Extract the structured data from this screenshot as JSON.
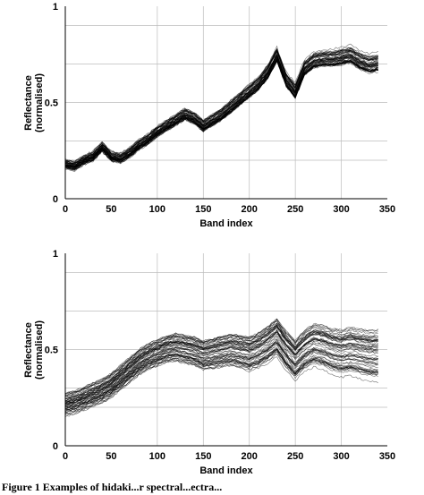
{
  "chart_data": [
    {
      "type": "line",
      "title": "",
      "xlabel": "Band index",
      "ylabel": "Reflectance",
      "ylabel_sub": "(normalised)",
      "xlim": [
        0,
        350
      ],
      "ylim": [
        0,
        1
      ],
      "xticks": [
        0,
        50,
        100,
        150,
        200,
        250,
        300,
        350
      ],
      "yticks": [
        0,
        0.5,
        1
      ],
      "grid": true,
      "series_count": 60,
      "series_count_note_removed": true,
      "mean_x": [
        0,
        10,
        20,
        30,
        40,
        50,
        60,
        70,
        80,
        90,
        100,
        110,
        120,
        130,
        140,
        150,
        160,
        170,
        180,
        190,
        200,
        210,
        220,
        230,
        240,
        250,
        260,
        270,
        280,
        290,
        300,
        310,
        320,
        330,
        340
      ],
      "mean_y": [
        0.18,
        0.17,
        0.2,
        0.22,
        0.27,
        0.22,
        0.21,
        0.24,
        0.28,
        0.31,
        0.35,
        0.38,
        0.41,
        0.44,
        0.42,
        0.38,
        0.41,
        0.44,
        0.48,
        0.52,
        0.56,
        0.6,
        0.66,
        0.75,
        0.62,
        0.56,
        0.68,
        0.72,
        0.73,
        0.73,
        0.74,
        0.75,
        0.72,
        0.7,
        0.71
      ],
      "spread": 0.04
    },
    {
      "type": "line",
      "title": "",
      "xlabel": "Band index",
      "ylabel": "Reflectance",
      "ylabel_sub": "(normalised)",
      "xlim": [
        0,
        350
      ],
      "ylim": [
        0,
        1
      ],
      "xticks": [
        0,
        50,
        100,
        150,
        200,
        250,
        300,
        350
      ],
      "yticks": [
        0,
        0.5,
        1
      ],
      "grid": true,
      "series_count": 60,
      "mean_x": [
        0,
        10,
        20,
        30,
        40,
        50,
        60,
        70,
        80,
        90,
        100,
        110,
        120,
        130,
        140,
        150,
        160,
        170,
        180,
        190,
        200,
        210,
        220,
        230,
        240,
        250,
        260,
        270,
        280,
        290,
        300,
        310,
        320,
        330,
        340
      ],
      "mean_y": [
        0.21,
        0.22,
        0.24,
        0.26,
        0.28,
        0.31,
        0.35,
        0.39,
        0.43,
        0.46,
        0.48,
        0.5,
        0.51,
        0.5,
        0.49,
        0.47,
        0.48,
        0.49,
        0.5,
        0.49,
        0.48,
        0.5,
        0.53,
        0.57,
        0.5,
        0.45,
        0.5,
        0.53,
        0.52,
        0.5,
        0.49,
        0.5,
        0.49,
        0.48,
        0.48
      ],
      "spread": 0.1
    }
  ],
  "caption": "Figure 1   Examples of hidaki...r spectral...ectra..."
}
